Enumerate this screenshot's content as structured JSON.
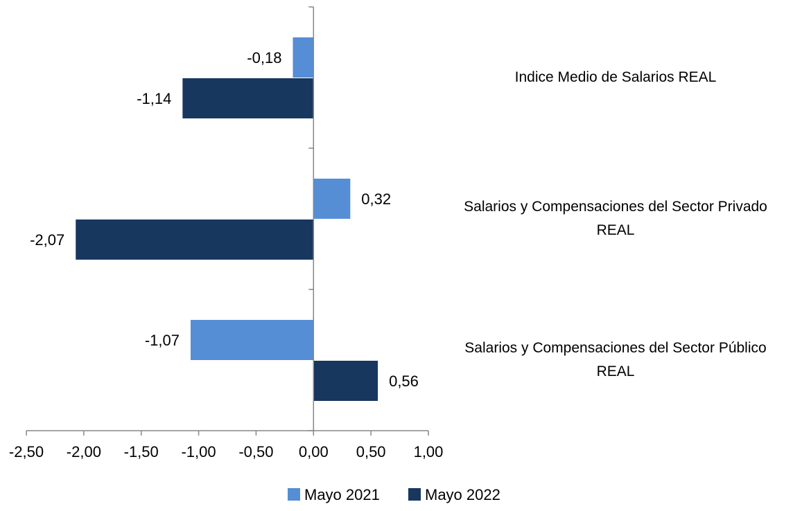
{
  "chart_data": {
    "type": "bar",
    "orientation": "horizontal",
    "categories": [
      [
        "Indice Medio de Salarios REAL"
      ],
      [
        "Salarios y Compensaciones del Sector Privado",
        "REAL"
      ],
      [
        "Salarios y Compensaciones del Sector Público",
        "REAL"
      ]
    ],
    "series": [
      {
        "name": "Mayo 2021",
        "color": "#558ed5",
        "values": [
          -0.18,
          0.32,
          -1.07
        ],
        "labels": [
          "-0,18",
          "0,32",
          "-1,07"
        ]
      },
      {
        "name": "Mayo 2022",
        "color": "#17375e",
        "values": [
          -1.14,
          -2.07,
          0.56
        ],
        "labels": [
          "-1,14",
          "-2,07",
          "0,56"
        ]
      }
    ],
    "xlim": [
      -2.5,
      1.0
    ],
    "xticks": [
      -2.5,
      -2.0,
      -1.5,
      -1.0,
      -0.5,
      0.0,
      0.5,
      1.0
    ],
    "xtick_labels": [
      "-2,50",
      "-2,00",
      "-1,50",
      "-1,00",
      "-0,50",
      "0,00",
      "0,50",
      "1,00"
    ],
    "grid": false,
    "legend_position": "bottom"
  }
}
